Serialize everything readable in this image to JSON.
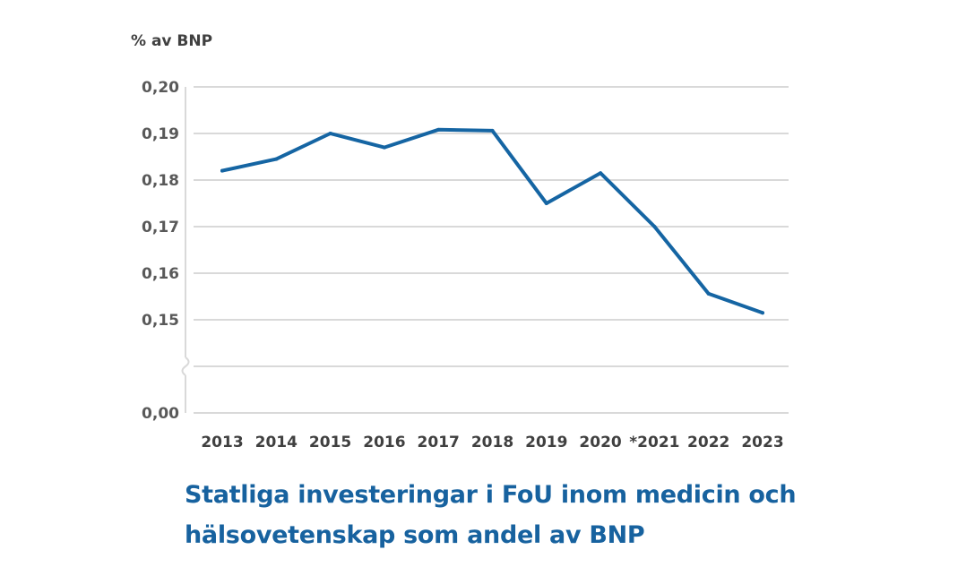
{
  "chart_data": {
    "type": "line",
    "title": "Statliga investeringar i FoU inom medicin och hälsovetenskap som andel av BNP",
    "ylabel": "% av BNP",
    "xlabel": "",
    "categories": [
      "2013",
      "2014",
      "2015",
      "2016",
      "2017",
      "2018",
      "2019",
      "2020",
      "*2021",
      "2022",
      "2023"
    ],
    "series": [
      {
        "values": [
          0.182,
          0.1845,
          0.19,
          0.187,
          0.1908,
          0.1906,
          0.175,
          0.1815,
          0.17,
          0.1556,
          0.1515
        ]
      }
    ],
    "ylim": [
      0.15,
      0.2
    ],
    "yticks": [
      "0,20",
      "0,19",
      "0,18",
      "0,17",
      "0,16",
      "0,15"
    ],
    "ybreak_label": "0,00",
    "y_axis_break": true,
    "grid": true,
    "line_color": "#1565a3"
  }
}
